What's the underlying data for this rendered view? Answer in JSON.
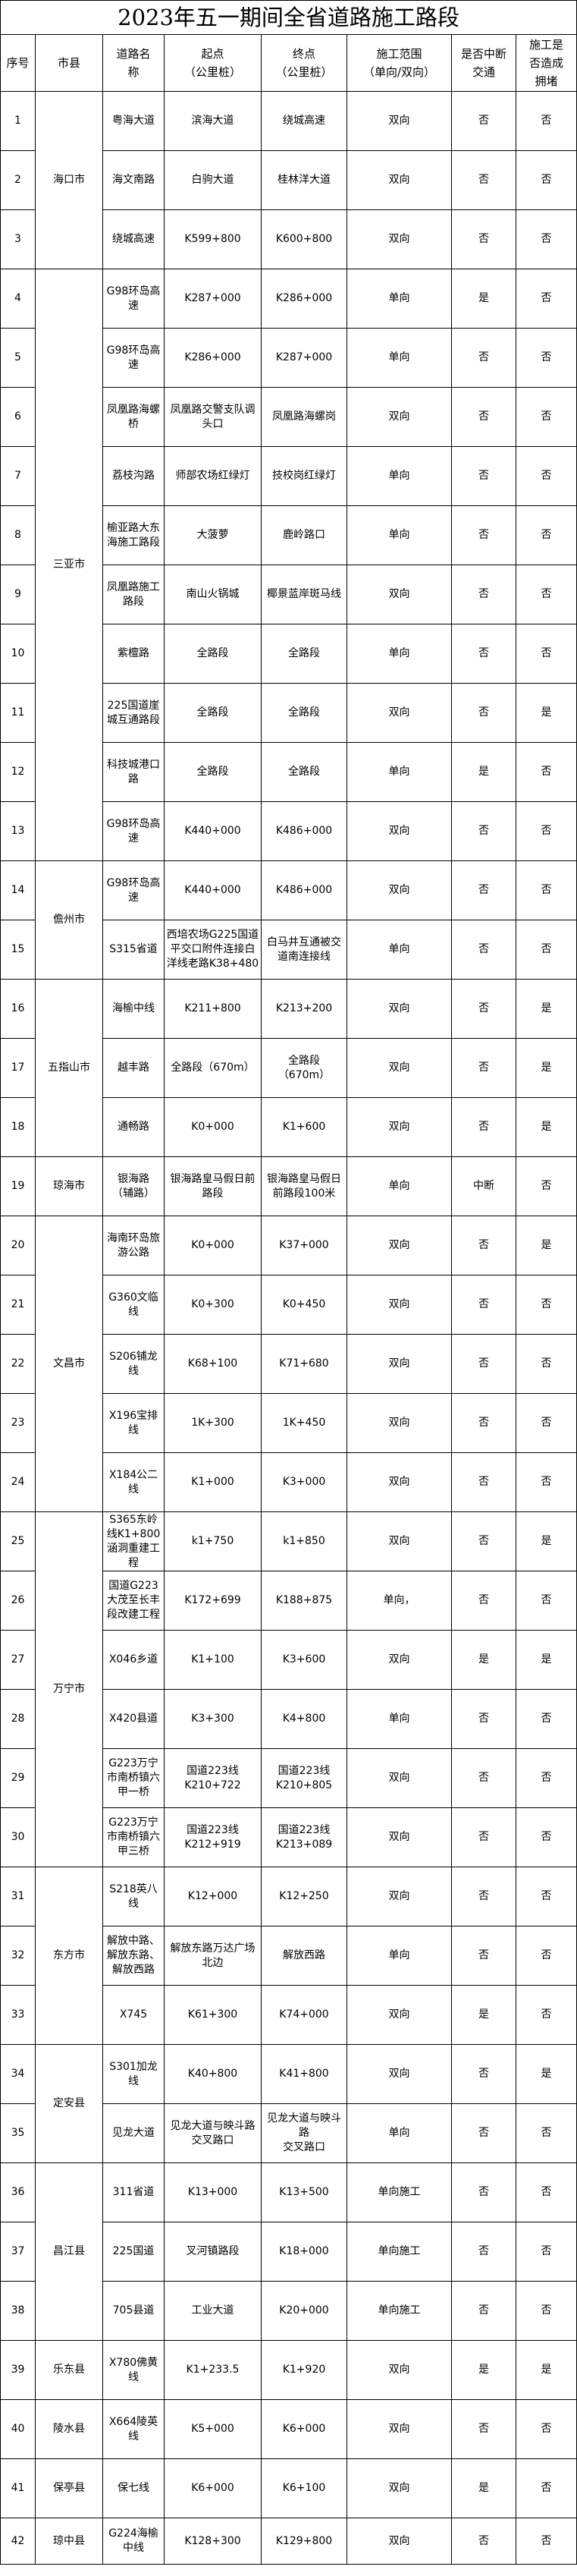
{
  "title": "2023年五一期间全省道路施工路段",
  "headers": {
    "no": "序号",
    "city": "市县",
    "road": "道路名\n称",
    "start": "起点\n（公里桩）",
    "end": "终点\n（公里桩）",
    "scope": "施工范围\n（单向/双向）",
    "interrupt": "是否中断\n交通",
    "congest": "施工是\n否造成\n拥堵"
  },
  "rows": [
    {
      "no": "1",
      "city": "海口市",
      "road": "粤海大道",
      "start": "滨海大道",
      "end": "绕城高速",
      "scope": "双向",
      "interrupt": "否",
      "congest": "否"
    },
    {
      "no": "2",
      "city": "海口市",
      "road": "海文南路",
      "start": "白驹大道",
      "end": "桂林洋大道",
      "scope": "双向",
      "interrupt": "否",
      "congest": "否"
    },
    {
      "no": "3",
      "city": "海口市",
      "road": "绕城高速",
      "start": "K599+800",
      "end": "K600+800",
      "scope": "双向",
      "interrupt": "否",
      "congest": "否"
    },
    {
      "no": "4",
      "city": "三亚市",
      "road": "G98环岛高速",
      "start": "K287+000",
      "end": "K286+000",
      "scope": "单向",
      "interrupt": "是",
      "congest": "否"
    },
    {
      "no": "5",
      "city": "三亚市",
      "road": "G98环岛高速",
      "start": "K286+000",
      "end": "K287+000",
      "scope": "单向",
      "interrupt": "否",
      "congest": "否"
    },
    {
      "no": "6",
      "city": "三亚市",
      "road": "凤凰路海螺桥",
      "start": "凤凰路交警支队调头口",
      "end": "凤凰路海螺岗",
      "scope": "双向",
      "interrupt": "否",
      "congest": "否"
    },
    {
      "no": "7",
      "city": "三亚市",
      "road": "荔枝沟路",
      "start": "师部农场红绿灯",
      "end": "技校岗红绿灯",
      "scope": "单向",
      "interrupt": "否",
      "congest": "否"
    },
    {
      "no": "8",
      "city": "三亚市",
      "road": "榆亚路大东海施工路段",
      "start": "大菠萝",
      "end": "鹿岭路口",
      "scope": "单向",
      "interrupt": "否",
      "congest": "否"
    },
    {
      "no": "9",
      "city": "三亚市",
      "road": "凤凰路施工路段",
      "start": "南山火锅城",
      "end": "椰景蓝岸斑马线",
      "scope": "双向",
      "interrupt": "否",
      "congest": "否"
    },
    {
      "no": "10",
      "city": "三亚市",
      "road": "紫檀路",
      "start": "全路段",
      "end": "全路段",
      "scope": "单向",
      "interrupt": "否",
      "congest": "否"
    },
    {
      "no": "11",
      "city": "三亚市",
      "road": "225国道崖城互通路段",
      "start": "全路段",
      "end": "全路段",
      "scope": "双向",
      "interrupt": "否",
      "congest": "是"
    },
    {
      "no": "12",
      "city": "三亚市",
      "road": "科技城港口路",
      "start": "全路段",
      "end": "全路段",
      "scope": "单向",
      "interrupt": "是",
      "congest": "否"
    },
    {
      "no": "13",
      "city": "三亚市",
      "road": "G98环岛高速",
      "start": "K440+000",
      "end": "K486+000",
      "scope": "双向",
      "interrupt": "否",
      "congest": "否"
    },
    {
      "no": "14",
      "city": "儋州市",
      "road": "G98环岛高速",
      "start": "K440+000",
      "end": "K486+000",
      "scope": "双向",
      "interrupt": "否",
      "congest": "否"
    },
    {
      "no": "15",
      "city": "儋州市",
      "road": "S315省道",
      "start": "西培农场G225国道平交口附件连接白洋线老路K38+480",
      "end": "白马井互通被交道南连接线",
      "scope": "单向",
      "interrupt": "否",
      "congest": "否"
    },
    {
      "no": "16",
      "city": "五指山市",
      "road": "海榆中线",
      "start": "K211+800",
      "end": "K213+200",
      "scope": "双向",
      "interrupt": "否",
      "congest": "是"
    },
    {
      "no": "17",
      "city": "五指山市",
      "road": "越丰路",
      "start": "全路段（670m）",
      "end": "全路段\n（670m）",
      "scope": "双向",
      "interrupt": "否",
      "congest": "是"
    },
    {
      "no": "18",
      "city": "五指山市",
      "road": "通畅路",
      "start": "K0+000",
      "end": "K1+600",
      "scope": "双向",
      "interrupt": "否",
      "congest": "是"
    },
    {
      "no": "19",
      "city": "琼海市",
      "road": "银海路\n（辅路）",
      "start": "银海路皇马假日前路段",
      "end": "银海路皇马假日前路段100米",
      "scope": "单向",
      "interrupt": "中断",
      "congest": "否"
    },
    {
      "no": "20",
      "city": "文昌市",
      "road": "海南环岛旅游公路",
      "start": "K0+000",
      "end": "K37+000",
      "scope": "双向",
      "interrupt": "否",
      "congest": "是"
    },
    {
      "no": "21",
      "city": "文昌市",
      "road": "G360文临线",
      "start": "K0+300",
      "end": "K0+450",
      "scope": "双向",
      "interrupt": "否",
      "congest": "否"
    },
    {
      "no": "22",
      "city": "文昌市",
      "road": "S206铺龙线",
      "start": "K68+100",
      "end": "K71+680",
      "scope": "双向",
      "interrupt": "否",
      "congest": "否"
    },
    {
      "no": "23",
      "city": "文昌市",
      "road": "X196宝排线",
      "start": "1K+300",
      "end": "1K+450",
      "scope": "双向",
      "interrupt": "否",
      "congest": "否"
    },
    {
      "no": "24",
      "city": "文昌市",
      "road": "X184公二线",
      "start": "K1+000",
      "end": "K3+000",
      "scope": "双向",
      "interrupt": "否",
      "congest": "否"
    },
    {
      "no": "25",
      "city": "万宁市",
      "road": "S365东岭线K1+800涵洞重建工程",
      "start": "k1+750",
      "end": "k1+850",
      "scope": "双向",
      "interrupt": "否",
      "congest": "是"
    },
    {
      "no": "26",
      "city": "万宁市",
      "road": "国道G223大茂至长丰段改建工程",
      "start": "K172+699",
      "end": "K188+875",
      "scope": "单向，",
      "interrupt": "否",
      "congest": "否"
    },
    {
      "no": "27",
      "city": "万宁市",
      "road": "X046乡道",
      "start": "K1+100",
      "end": "K3+600",
      "scope": "双向",
      "interrupt": "是",
      "congest": "是"
    },
    {
      "no": "28",
      "city": "万宁市",
      "road": "X420县道",
      "start": "K3+300",
      "end": "K4+800",
      "scope": "单向",
      "interrupt": "否",
      "congest": "否"
    },
    {
      "no": "29",
      "city": "万宁市",
      "road": "G223万宁市南桥镇六甲一桥",
      "start": "国道223线\nK210+722",
      "end": "国道223线\nK210+805",
      "scope": "双向",
      "interrupt": "否",
      "congest": "否"
    },
    {
      "no": "30",
      "city": "万宁市",
      "road": "G223万宁市南桥镇六甲三桥",
      "start": "国道223线\nK212+919",
      "end": "国道223线\nK213+089",
      "scope": "双向",
      "interrupt": "否",
      "congest": "否"
    },
    {
      "no": "31",
      "city": "东方市",
      "road": "S218英八线",
      "start": "K12+000",
      "end": "K12+250",
      "scope": "双向",
      "interrupt": "否",
      "congest": "否"
    },
    {
      "no": "32",
      "city": "东方市",
      "road": "解放中路、解放东路、解放西路",
      "start": "解放东路万达广场北边",
      "end": "解放西路",
      "scope": "单向",
      "interrupt": "否",
      "congest": "否"
    },
    {
      "no": "33",
      "city": "东方市",
      "road": "X745",
      "start": "K61+300",
      "end": "K74+000",
      "scope": "双向",
      "interrupt": "是",
      "congest": "否"
    },
    {
      "no": "34",
      "city": "定安县",
      "road": "S301加龙线",
      "start": "K40+800",
      "end": "K41+800",
      "scope": "双向",
      "interrupt": "否",
      "congest": "是"
    },
    {
      "no": "35",
      "city": "定安县",
      "road": "见龙大道",
      "start": "见龙大道与映斗路\n交叉路口",
      "end": "见龙大道与映斗路\n交叉路口",
      "scope": "单向",
      "interrupt": "否",
      "congest": "否"
    },
    {
      "no": "36",
      "city": "昌江县",
      "road": "311省道",
      "start": "K13+000",
      "end": "K13+500",
      "scope": "单向施工",
      "interrupt": "否",
      "congest": "否"
    },
    {
      "no": "37",
      "city": "昌江县",
      "road": "225国道",
      "start": "叉河镇路段",
      "end": "K18+000",
      "scope": "单向施工",
      "interrupt": "否",
      "congest": "否"
    },
    {
      "no": "38",
      "city": "昌江县",
      "road": "705县道",
      "start": "工业大道",
      "end": "K20+000",
      "scope": "单向施工",
      "interrupt": "否",
      "congest": "否"
    },
    {
      "no": "39",
      "city": "乐东县",
      "road": "X780佛黄线",
      "start": "K1+233.5",
      "end": "K1+920",
      "scope": "双向",
      "interrupt": "是",
      "congest": "是"
    },
    {
      "no": "40",
      "city": "陵水县",
      "road": "X664陵英线",
      "start": "K5+000",
      "end": "K6+000",
      "scope": "双向",
      "interrupt": "否",
      "congest": "否"
    },
    {
      "no": "41",
      "city": "保亭县",
      "road": "保七线",
      "start": "K6+000",
      "end": "K6+100",
      "scope": "双向",
      "interrupt": "是",
      "congest": "否"
    },
    {
      "no": "42",
      "city": "琼中县",
      "road": "G224海榆中线",
      "start": "K128+300",
      "end": "K129+800",
      "scope": "双向",
      "interrupt": "否",
      "congest": "否"
    }
  ]
}
